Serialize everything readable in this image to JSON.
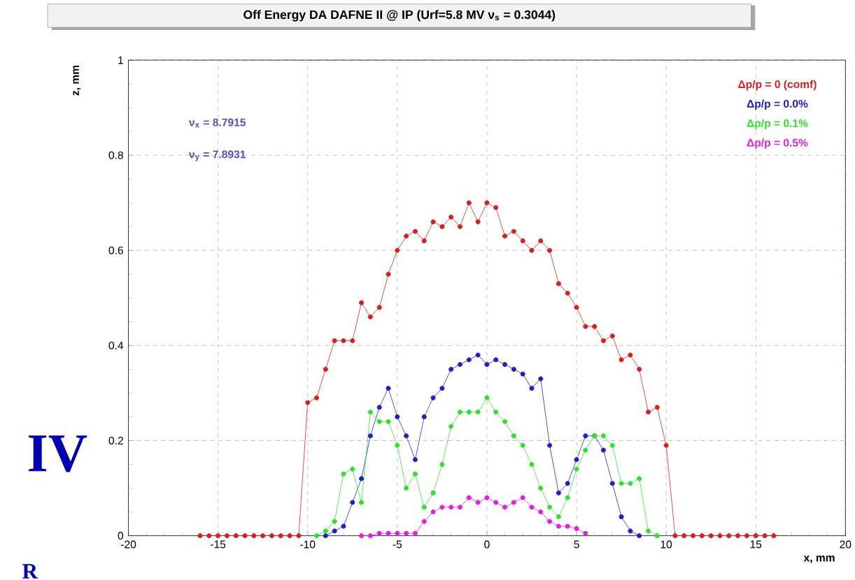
{
  "chart_data": {
    "type": "line",
    "title": "Off Energy DA DAFNE II @ IP (Urf=5.8 MV  ν$_{s}$ = 0.3044)",
    "xlabel": "x, mm",
    "ylabel": "z, mm",
    "xlim": [
      -20,
      20
    ],
    "ylim": [
      0,
      1
    ],
    "xticks": [
      -20,
      -15,
      -10,
      -5,
      0,
      5,
      10,
      15,
      20
    ],
    "yticks": [
      0,
      0.2,
      0.4,
      0.6,
      0.8,
      1
    ],
    "grid": true,
    "legend": "top right",
    "marker": "circle",
    "line_style": "solid",
    "annotations": [
      "ν$_{x}$ = 8.7915",
      "ν$_{y}$ = 7.8931",
      "IV",
      "R"
    ],
    "series": [
      {
        "name": "Δp/p = 0 (comf)",
        "color": "#d42020",
        "x": [
          -16,
          -15.5,
          -15,
          -14.5,
          -14,
          -13.5,
          -13,
          -12.5,
          -12,
          -11.5,
          -11,
          -10.5,
          -10,
          -9.5,
          -9,
          -8.5,
          -8,
          -7.5,
          -7,
          -6.5,
          -6,
          -5.5,
          -5,
          -4.5,
          -4,
          -3.5,
          -3,
          -2.5,
          -2,
          -1.5,
          -1,
          -0.5,
          0,
          0.5,
          1,
          1.5,
          2,
          2.5,
          3,
          3.5,
          4,
          4.5,
          5,
          5.5,
          6,
          6.5,
          7,
          7.5,
          8,
          8.5,
          9,
          9.5,
          10,
          10.5,
          11,
          11.5,
          12,
          12.5,
          13,
          13.5,
          14,
          14.5,
          15,
          15.5,
          16
        ],
        "values": [
          0,
          0,
          0,
          0,
          0,
          0,
          0,
          0,
          0,
          0,
          0,
          0,
          0.28,
          0.29,
          0.35,
          0.41,
          0.41,
          0.41,
          0.49,
          0.46,
          0.48,
          0.55,
          0.6,
          0.63,
          0.64,
          0.62,
          0.66,
          0.65,
          0.67,
          0.65,
          0.7,
          0.66,
          0.7,
          0.69,
          0.63,
          0.64,
          0.62,
          0.6,
          0.62,
          0.6,
          0.53,
          0.51,
          0.48,
          0.44,
          0.44,
          0.41,
          0.42,
          0.37,
          0.38,
          0.35,
          0.26,
          0.27,
          0.19,
          0,
          0,
          0,
          0,
          0,
          0,
          0,
          0,
          0,
          0,
          0,
          0
        ]
      },
      {
        "name": "Δp/p = 0.0%",
        "color": "#2020c0",
        "x": [
          -9,
          -8.5,
          -8,
          -7.5,
          -7,
          -6.5,
          -6,
          -5.5,
          -5,
          -4.5,
          -4,
          -3.5,
          -3,
          -2.5,
          -2,
          -1.5,
          -1,
          -0.5,
          0,
          0.5,
          1,
          1.5,
          2,
          2.5,
          3,
          3.5,
          4,
          4.5,
          5,
          5.5,
          6,
          6.5,
          7,
          7.5,
          8,
          8.5
        ],
        "values": [
          0,
          0.01,
          0.02,
          0.07,
          0.12,
          0.21,
          0.27,
          0.31,
          0.25,
          0.21,
          0.16,
          0.25,
          0.29,
          0.31,
          0.35,
          0.36,
          0.37,
          0.38,
          0.36,
          0.37,
          0.36,
          0.35,
          0.34,
          0.31,
          0.33,
          0.19,
          0.09,
          0.11,
          0.16,
          0.21,
          0.21,
          0.18,
          0.11,
          0.04,
          0.01,
          0
        ]
      },
      {
        "name": "Δp/p = 0.1%",
        "color": "#30e030",
        "x": [
          -9.5,
          -9,
          -8.5,
          -8,
          -7.5,
          -7,
          -6.5,
          -6,
          -5.5,
          -5,
          -4.5,
          -4,
          -3.5,
          -3,
          -2.5,
          -2,
          -1.5,
          -1,
          -0.5,
          0,
          0.5,
          1,
          1.5,
          2,
          2.5,
          3,
          3.5,
          4,
          4.5,
          5,
          5.5,
          6,
          6.5,
          7,
          7.5,
          8,
          8.5,
          9,
          9.5
        ],
        "values": [
          0,
          0.01,
          0.03,
          0.13,
          0.14,
          0.07,
          0.26,
          0.24,
          0.24,
          0.19,
          0.1,
          0.13,
          0.06,
          0.09,
          0.15,
          0.23,
          0.26,
          0.26,
          0.26,
          0.29,
          0.26,
          0.24,
          0.21,
          0.19,
          0.15,
          0.1,
          0.06,
          0.04,
          0.08,
          0.14,
          0.18,
          0.21,
          0.21,
          0.19,
          0.11,
          0.11,
          0.12,
          0.01,
          0
        ]
      },
      {
        "name": "Δp/p = 0.5%",
        "color": "#e020e0",
        "x": [
          -7,
          -6.5,
          -6,
          -5.5,
          -5,
          -4.5,
          -4,
          -3.5,
          -3,
          -2.5,
          -2,
          -1.5,
          -1,
          -0.5,
          0,
          0.5,
          1,
          1.5,
          2,
          2.5,
          3,
          3.5,
          4,
          4.5,
          5,
          5.5
        ],
        "values": [
          0,
          0,
          0.005,
          0.005,
          0.005,
          0.005,
          0.005,
          0.03,
          0.05,
          0.06,
          0.06,
          0.06,
          0.08,
          0.07,
          0.08,
          0.07,
          0.06,
          0.07,
          0.08,
          0.06,
          0.05,
          0.03,
          0.02,
          0.02,
          0.015,
          0.005
        ]
      }
    ]
  }
}
